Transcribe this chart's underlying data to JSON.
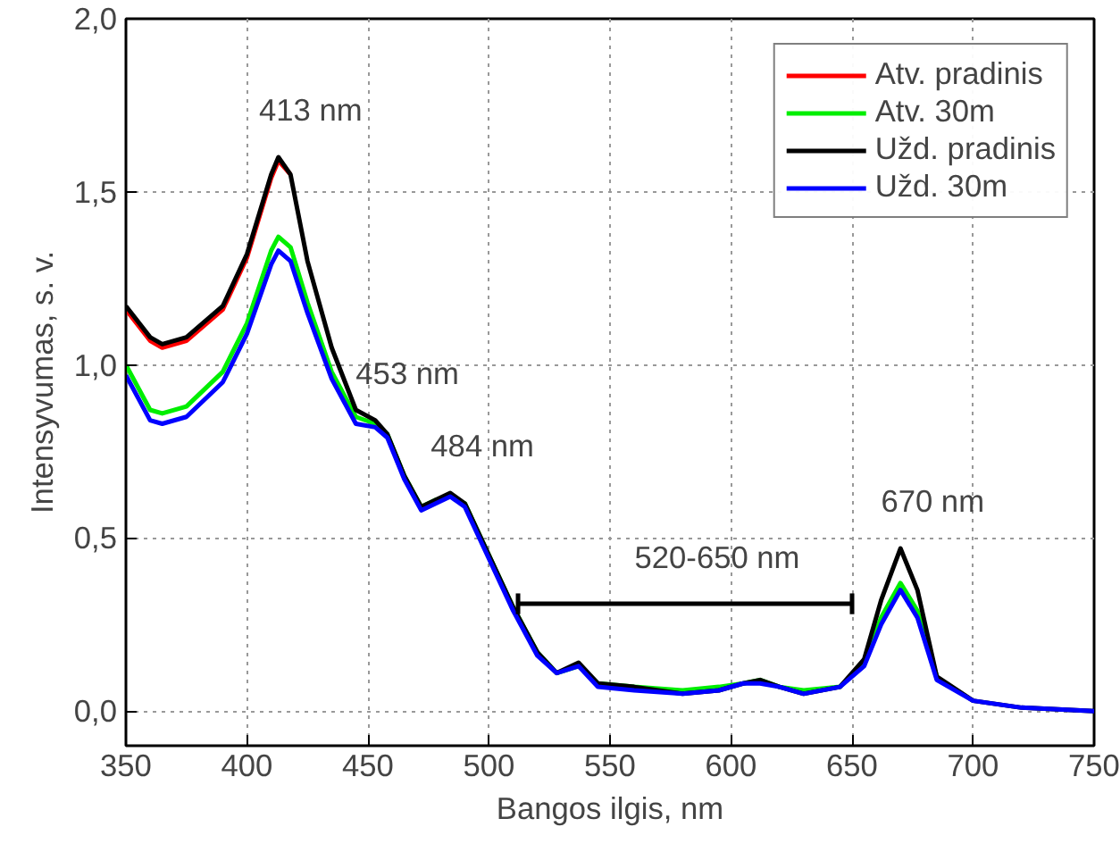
{
  "chart_data": {
    "type": "line",
    "xlabel": "Bangos ilgis, nm",
    "ylabel": "Intensyvumas, s. v.",
    "x": [
      350,
      360,
      365,
      375,
      390,
      400,
      410,
      413,
      418,
      425,
      435,
      445,
      453,
      458,
      465,
      472,
      478,
      484,
      490,
      500,
      510,
      520,
      528,
      537,
      545,
      560,
      580,
      595,
      605,
      612,
      620,
      630,
      645,
      655,
      662,
      670,
      677,
      685,
      700,
      720,
      750
    ],
    "series": [
      {
        "name": "Atv. pradinis",
        "color": "#ff0000",
        "values": [
          1.16,
          1.07,
          1.05,
          1.07,
          1.16,
          1.31,
          1.54,
          1.59,
          1.55,
          null,
          null,
          null,
          null,
          null,
          null,
          null,
          null,
          null,
          null,
          null,
          null,
          null,
          null,
          null,
          null,
          null,
          null,
          null,
          null,
          null,
          null,
          null,
          null,
          null,
          null,
          null,
          null,
          null,
          null,
          null,
          null
        ]
      },
      {
        "name": "Atv. 30m",
        "color": "#00ee00",
        "values": [
          1.0,
          0.87,
          0.86,
          0.88,
          0.98,
          1.12,
          1.33,
          1.37,
          1.34,
          1.18,
          0.98,
          0.85,
          0.83,
          0.8,
          0.68,
          0.59,
          0.61,
          0.62,
          0.6,
          0.45,
          0.3,
          0.17,
          0.11,
          0.13,
          0.08,
          0.07,
          0.06,
          0.07,
          0.08,
          0.09,
          0.07,
          0.06,
          0.07,
          0.14,
          0.27,
          0.37,
          0.29,
          0.1,
          null,
          null,
          null
        ]
      },
      {
        "name": "Užd. pradinis",
        "color": "#000000",
        "values": [
          1.17,
          1.08,
          1.06,
          1.08,
          1.17,
          1.32,
          1.55,
          1.6,
          1.55,
          1.3,
          1.05,
          0.87,
          0.84,
          0.8,
          0.68,
          0.59,
          0.61,
          0.63,
          0.6,
          0.45,
          0.3,
          0.17,
          0.11,
          0.14,
          0.08,
          0.07,
          0.05,
          0.06,
          0.08,
          0.09,
          0.07,
          0.05,
          0.07,
          0.15,
          0.32,
          0.47,
          0.35,
          0.1,
          0.03,
          0.01,
          0.0
        ]
      },
      {
        "name": "Užd. 30m",
        "color": "#0000ff",
        "values": [
          0.97,
          0.84,
          0.83,
          0.85,
          0.95,
          1.09,
          1.29,
          1.33,
          1.3,
          1.15,
          0.96,
          0.83,
          0.82,
          0.79,
          0.67,
          0.58,
          0.6,
          0.62,
          0.59,
          0.44,
          0.29,
          0.16,
          0.11,
          0.13,
          0.07,
          0.06,
          0.05,
          0.06,
          0.08,
          0.08,
          0.07,
          0.05,
          0.07,
          0.13,
          0.25,
          0.35,
          0.27,
          0.09,
          0.03,
          0.01,
          0.0
        ]
      },
      {
        "type": "line",
        "color": "#000000",
        "x": [
          512,
          650
        ],
        "values": [
          0.31,
          0.31
        ],
        "errors": [
          0.03,
          0.03
        ],
        "marker": "none"
      }
    ],
    "xlim": [
      350,
      750
    ],
    "xticks": [
      350,
      400,
      450,
      500,
      550,
      600,
      650,
      700,
      750
    ],
    "ylim": [
      -0.1,
      2.0
    ],
    "yticks": [
      {
        "value": 0,
        "label": "0,0"
      },
      {
        "value": 0.5,
        "label": "0,5"
      },
      {
        "value": 1.0,
        "label": "1,0"
      },
      {
        "value": 1.5,
        "label": "1,5"
      },
      {
        "value": 2.0,
        "label": "2,0"
      }
    ],
    "annotations": [
      {
        "text": "413 nm",
        "x": 413,
        "y": 1.6
      },
      {
        "text": "453 nm",
        "x": 453,
        "y": 0.84
      },
      {
        "text": "484 nm",
        "x": 484,
        "y": 0.63
      },
      {
        "text": "670 nm",
        "x": 670,
        "y": 0.47
      },
      {
        "text": "520-650 nm",
        "x": 581,
        "y": 0.31
      }
    ],
    "grid": true,
    "legend": "top right",
    "line_style": "solid",
    "marker": "none"
  }
}
